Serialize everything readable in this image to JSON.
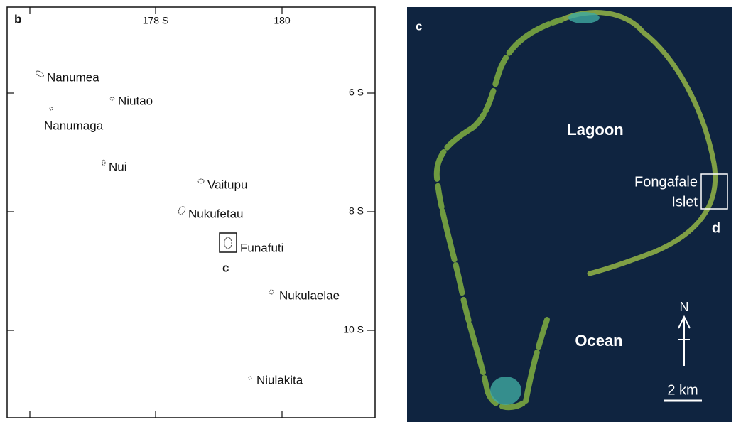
{
  "panel_b": {
    "label": "b",
    "top_ticks": [
      "178 S",
      "180"
    ],
    "right_ticks": [
      "6 S",
      "8 S",
      "10 S"
    ],
    "islands": [
      "Nanumea",
      "Niutao",
      "Nanumaga",
      "Nui",
      "Vaitupu",
      "Nukufetau",
      "Funafuti",
      "Nukulaelae",
      "Niulakita"
    ],
    "inset_label": "c"
  },
  "panel_c": {
    "label": "c",
    "lagoon": "Lagoon",
    "islet": [
      "Fongafale",
      "Islet"
    ],
    "inset_label": "d",
    "ocean": "Ocean",
    "north": "N",
    "scale": "2 km"
  }
}
